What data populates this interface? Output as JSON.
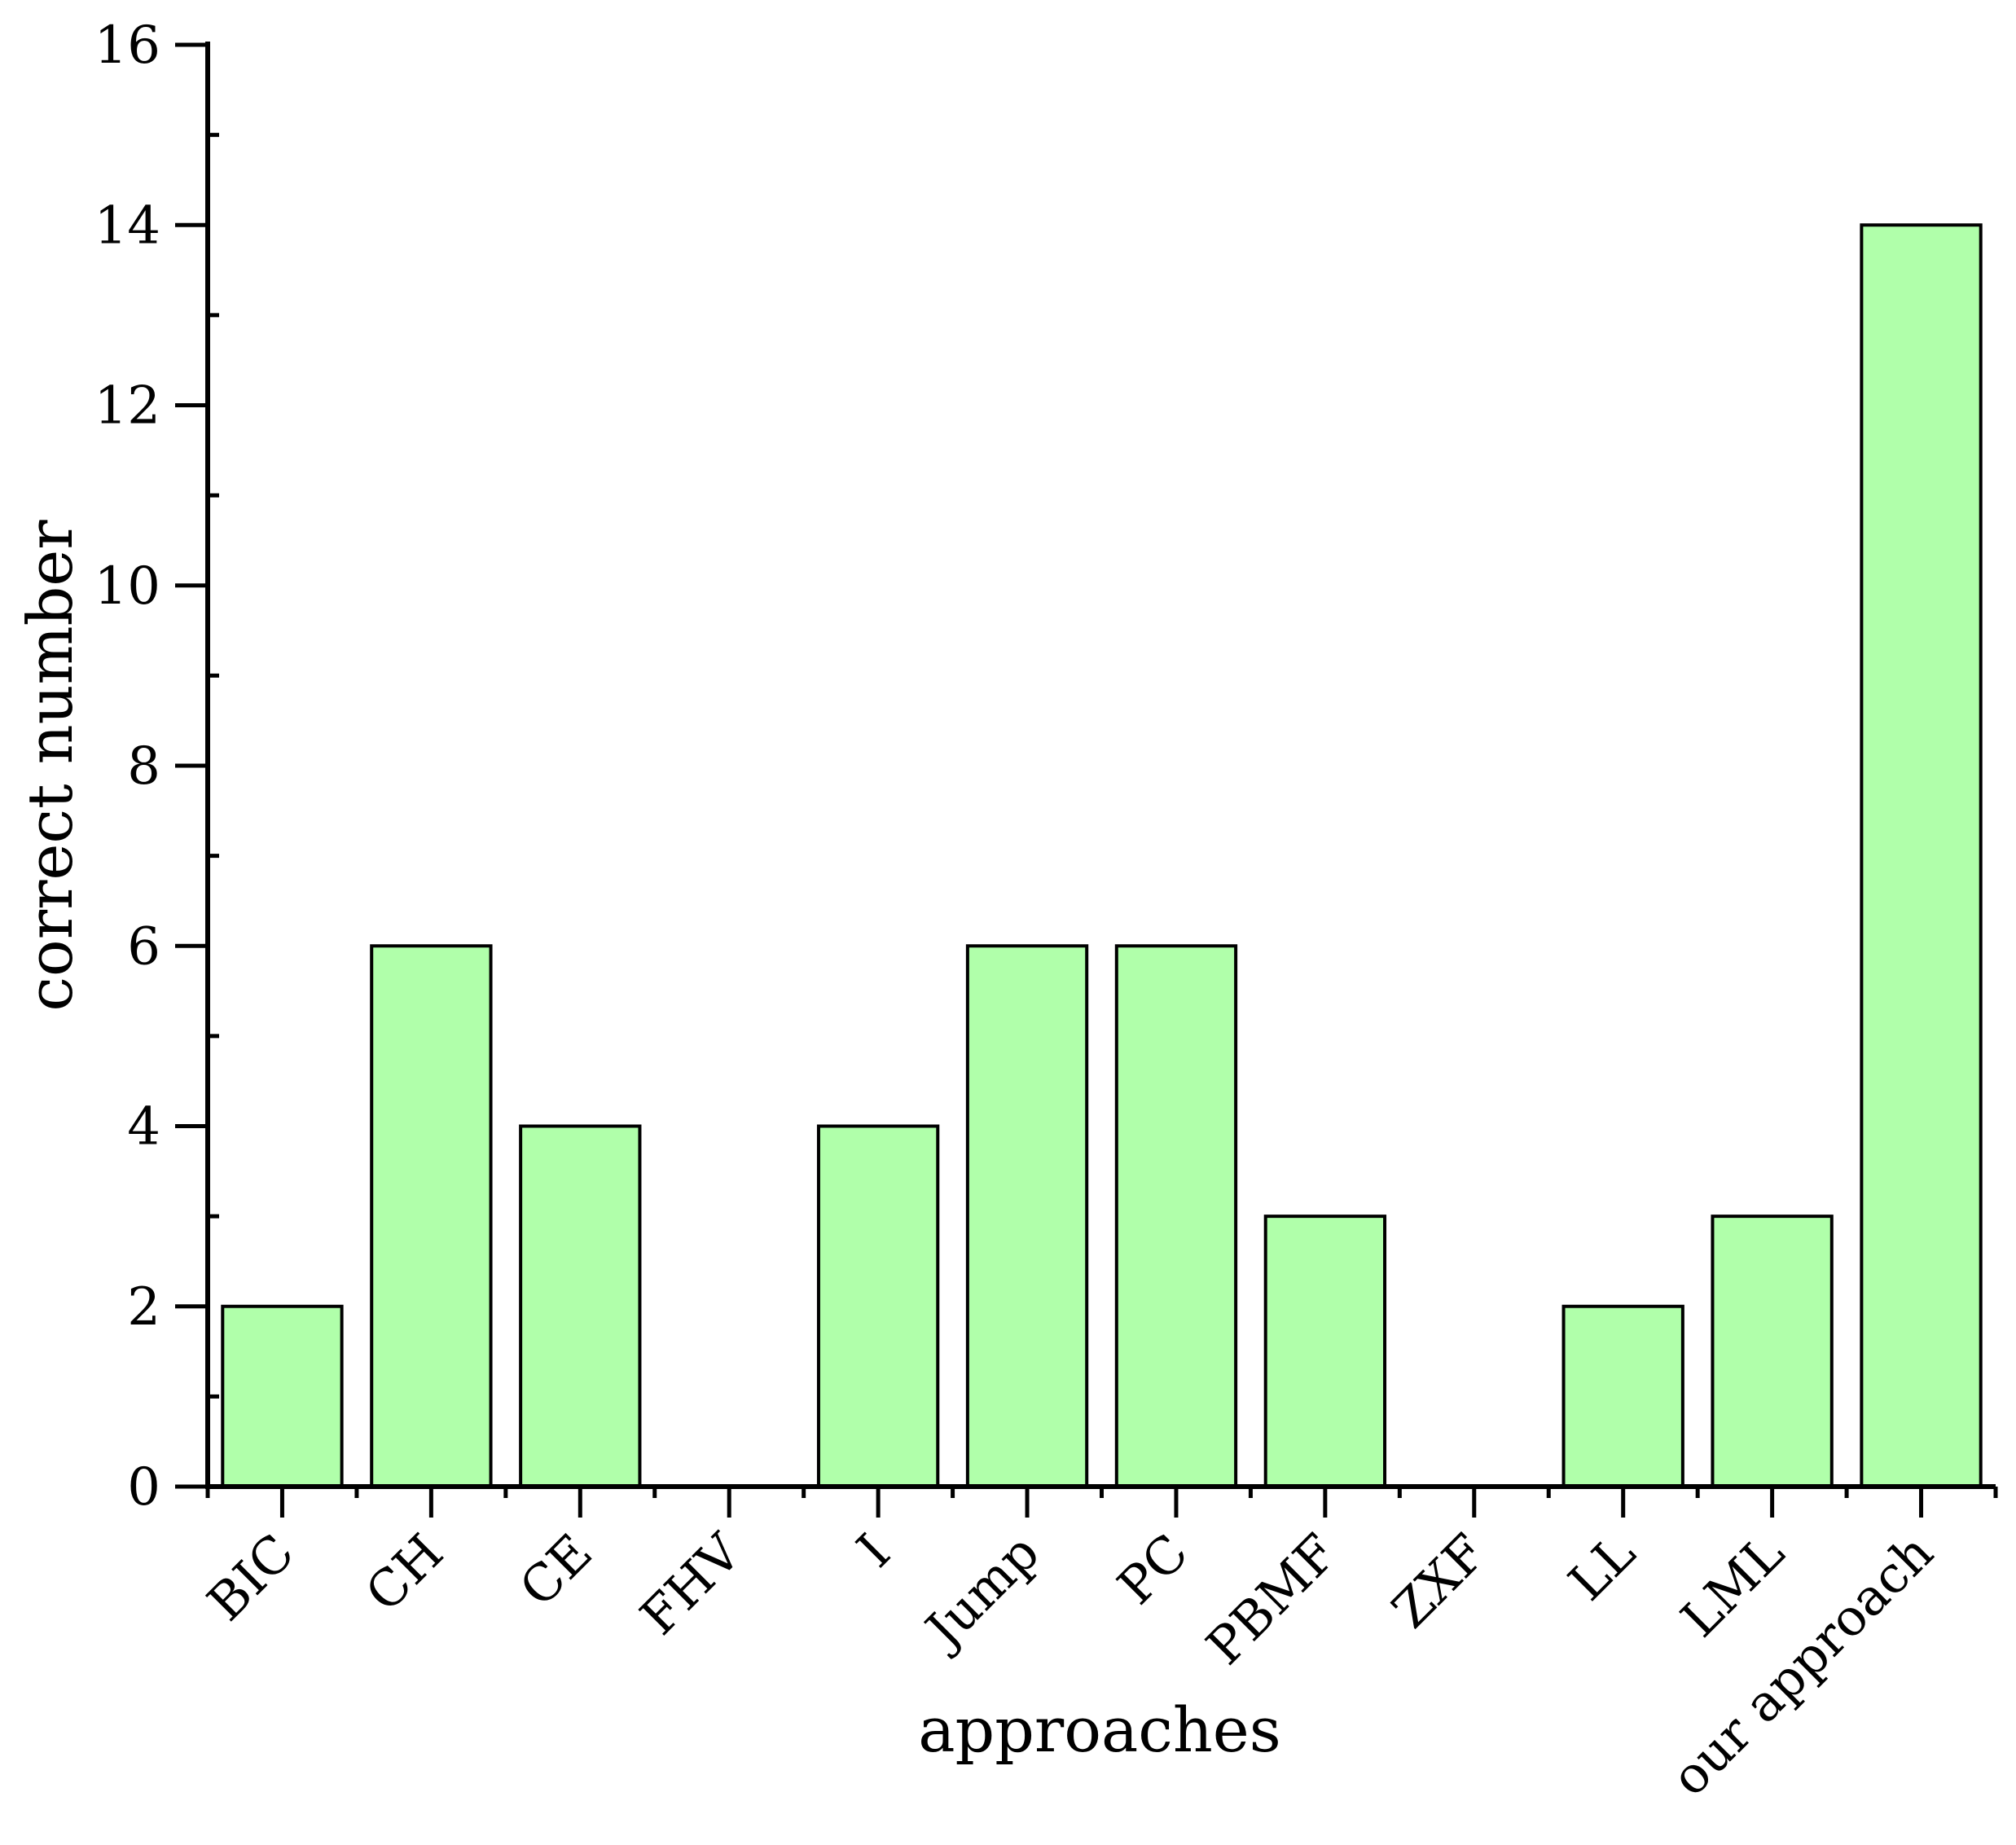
{
  "chart_data": {
    "type": "bar",
    "categories": [
      "BIC",
      "CH",
      "CE",
      "FHV",
      "I",
      "Jump",
      "PC",
      "PBMF",
      "ZXF",
      "LL",
      "LML",
      "our approach"
    ],
    "values": [
      2,
      6,
      4,
      0,
      4,
      6,
      6,
      3,
      0,
      2,
      3,
      14
    ],
    "xlabel": "approaches",
    "ylabel": "correct number",
    "ylim": [
      0,
      16
    ],
    "yticks": [
      0,
      2,
      4,
      6,
      8,
      10,
      12,
      14,
      16
    ],
    "grid": false,
    "colors": {
      "bar_fill": "#b0ffaa",
      "bar_stroke": "#000000"
    }
  }
}
